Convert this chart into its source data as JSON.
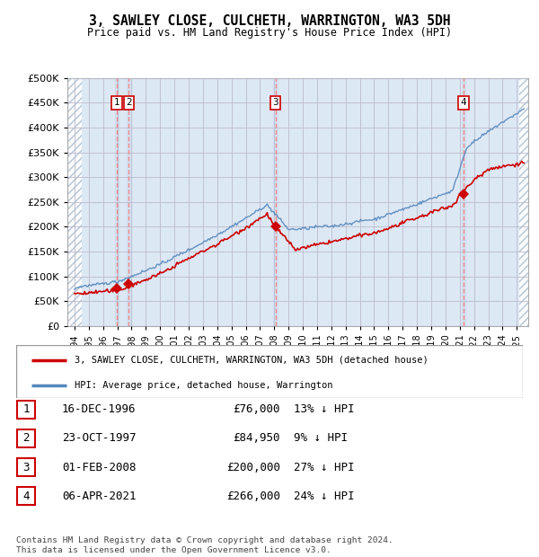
{
  "title": "3, SAWLEY CLOSE, CULCHETH, WARRINGTON, WA3 5DH",
  "subtitle": "Price paid vs. HM Land Registry's House Price Index (HPI)",
  "ylim": [
    0,
    500000
  ],
  "yticks": [
    0,
    50000,
    100000,
    150000,
    200000,
    250000,
    300000,
    350000,
    400000,
    450000,
    500000
  ],
  "ytick_labels": [
    "£0",
    "£50K",
    "£100K",
    "£150K",
    "£200K",
    "£250K",
    "£300K",
    "£350K",
    "£400K",
    "£450K",
    "£500K"
  ],
  "legend_entries": [
    "3, SAWLEY CLOSE, CULCHETH, WARRINGTON, WA3 5DH (detached house)",
    "HPI: Average price, detached house, Warrington"
  ],
  "transactions": [
    {
      "num": 1,
      "date": "16-DEC-1996",
      "price": 76000,
      "pct": "13%",
      "year": 1996.96,
      "dot_y": 76000
    },
    {
      "num": 2,
      "date": "23-OCT-1997",
      "price": 84950,
      "pct": "9%",
      "year": 1997.81,
      "dot_y": 84950
    },
    {
      "num": 3,
      "date": "01-FEB-2008",
      "price": 200000,
      "pct": "27%",
      "year": 2008.08,
      "dot_y": 200000
    },
    {
      "num": 4,
      "date": "06-APR-2021",
      "price": 266000,
      "pct": "24%",
      "year": 2021.26,
      "dot_y": 266000
    }
  ],
  "footer": "Contains HM Land Registry data © Crown copyright and database right 2024.\nThis data is licensed under the Open Government Licence v3.0.",
  "line_color_red": "#cc0000",
  "line_color_blue": "#5588bb",
  "grid_color": "#bbbbcc",
  "vline_color": "#ee8888",
  "box_color": "#cc0000",
  "plot_bg": "#dde8f5",
  "hatch_color": "#aabbcc",
  "xlim_start": 1993.5,
  "xlim_end": 2025.8,
  "hatch_left_end": 1994.5,
  "hatch_right_start": 2025.2,
  "xtick_years": [
    1994,
    1995,
    1996,
    1997,
    1998,
    1999,
    2000,
    2001,
    2002,
    2003,
    2004,
    2005,
    2006,
    2007,
    2008,
    2009,
    2010,
    2011,
    2012,
    2013,
    2014,
    2015,
    2016,
    2017,
    2018,
    2019,
    2020,
    2021,
    2022,
    2023,
    2024,
    2025
  ]
}
